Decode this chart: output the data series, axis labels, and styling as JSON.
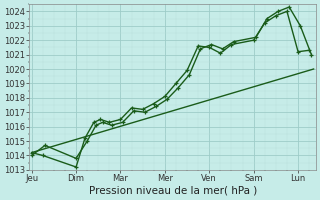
{
  "title": "",
  "xlabel": "Pression niveau de la mer( hPa )",
  "bg_color": "#c6ece8",
  "grid_major_color": "#9eccc8",
  "grid_minor_color": "#b8deda",
  "line_color": "#1a5c1a",
  "ylim": [
    1013.0,
    1024.5
  ],
  "yticks": [
    1013,
    1014,
    1015,
    1016,
    1017,
    1018,
    1019,
    1020,
    1021,
    1022,
    1023,
    1024
  ],
  "day_labels": [
    "Jeu",
    "Dim",
    "Mar",
    "Mer",
    "Ven",
    "Sam",
    "Lun"
  ],
  "day_positions": [
    0,
    1,
    2,
    3,
    4,
    5,
    6
  ],
  "xlim": [
    -0.05,
    6.4
  ],
  "line1_x": [
    0.0,
    0.25,
    1.0,
    1.2,
    1.4,
    1.55,
    1.75,
    2.0,
    2.25,
    2.5,
    2.75,
    3.0,
    3.25,
    3.5,
    3.75,
    4.0,
    4.25,
    4.5,
    5.0,
    5.25,
    5.5,
    5.75,
    6.0,
    6.25
  ],
  "line1_y": [
    1014.2,
    1014.0,
    1013.2,
    1015.2,
    1016.3,
    1016.5,
    1016.3,
    1016.5,
    1017.3,
    1017.2,
    1017.6,
    1018.1,
    1019.0,
    1019.9,
    1021.6,
    1021.5,
    1021.1,
    1021.7,
    1022.0,
    1023.2,
    1023.7,
    1024.0,
    1021.2,
    1021.3
  ],
  "line2_x": [
    0.0,
    0.3,
    1.0,
    1.25,
    1.45,
    1.6,
    1.8,
    2.05,
    2.3,
    2.55,
    2.8,
    3.05,
    3.3,
    3.55,
    3.8,
    4.05,
    4.3,
    4.55,
    5.05,
    5.3,
    5.55,
    5.8,
    6.05,
    6.3
  ],
  "line2_y": [
    1014.0,
    1014.7,
    1013.8,
    1015.0,
    1016.1,
    1016.3,
    1016.1,
    1016.3,
    1017.1,
    1017.0,
    1017.4,
    1017.9,
    1018.7,
    1019.6,
    1021.4,
    1021.7,
    1021.4,
    1021.9,
    1022.2,
    1023.5,
    1024.0,
    1024.3,
    1023.0,
    1021.0
  ],
  "line3_x": [
    0.0,
    6.35
  ],
  "line3_y": [
    1014.2,
    1020.0
  ],
  "marker": "+",
  "markersize": 3.5,
  "linewidth": 1.0,
  "tick_fontsize": 6.0,
  "xlabel_fontsize": 7.5
}
